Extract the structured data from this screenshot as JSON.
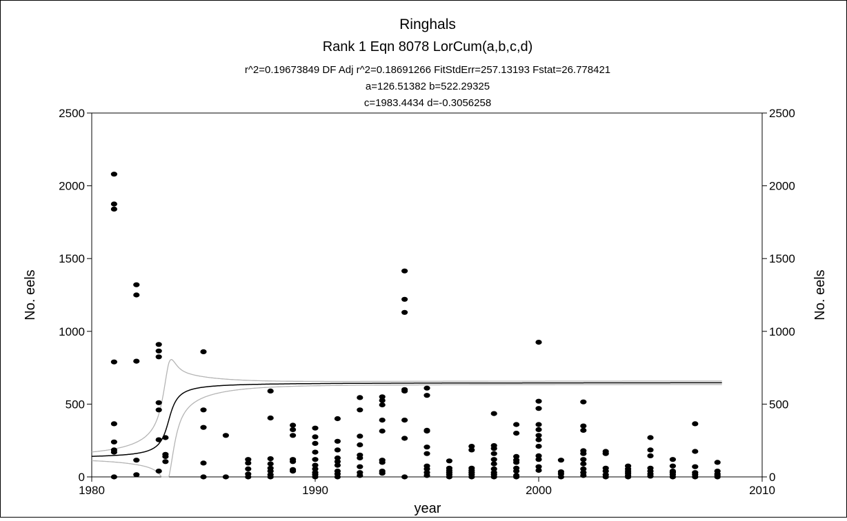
{
  "chart_data": {
    "type": "scatter",
    "title": "Ringhals",
    "subtitle": "Rank 1  Eqn 8078  LorCum(a,b,c,d)",
    "stats_line": "r^2=0.19673849  DF Adj r^2=0.18691266  FitStdErr=257.13193  Fstat=26.778421",
    "params_line1": "a=126.51382 b=522.29325",
    "params_line2": "c=1983.4434 d=-0.3056258",
    "xlabel": "year",
    "ylabel": "No. eels",
    "ylabel_right": "No. eels",
    "xlim": [
      1980,
      2010
    ],
    "ylim": [
      0,
      2500
    ],
    "xticks": [
      1980,
      1990,
      2000,
      2010
    ],
    "yticks": [
      0,
      500,
      1000,
      1500,
      2000,
      2500
    ],
    "grid": false,
    "fit": {
      "a": 126.51382,
      "b": 522.29325,
      "c": 1983.4434,
      "d": -0.3056258
    },
    "fit_color": "#000000",
    "band_color": "#b4b4b4",
    "point_color": "#000000",
    "points": [
      [
        1981,
        2080
      ],
      [
        1981,
        1875
      ],
      [
        1981,
        1840
      ],
      [
        1981,
        790
      ],
      [
        1981,
        365
      ],
      [
        1981,
        240
      ],
      [
        1981,
        185
      ],
      [
        1981,
        170
      ],
      [
        1981,
        0
      ],
      [
        1982,
        1320
      ],
      [
        1982,
        1250
      ],
      [
        1982,
        795
      ],
      [
        1982,
        115
      ],
      [
        1982,
        15
      ],
      [
        1983,
        910
      ],
      [
        1983,
        865
      ],
      [
        1983,
        825
      ],
      [
        1983,
        510
      ],
      [
        1983,
        460
      ],
      [
        1983,
        255
      ],
      [
        1983,
        40
      ],
      [
        1983.3,
        270
      ],
      [
        1983.3,
        155
      ],
      [
        1983.3,
        140
      ],
      [
        1983.3,
        105
      ],
      [
        1985,
        860
      ],
      [
        1985,
        460
      ],
      [
        1985,
        340
      ],
      [
        1985,
        95
      ],
      [
        1985,
        0
      ],
      [
        1986,
        285
      ],
      [
        1986,
        0
      ],
      [
        1987,
        120
      ],
      [
        1987,
        95
      ],
      [
        1987,
        55
      ],
      [
        1987,
        20
      ],
      [
        1987,
        0
      ],
      [
        1988,
        590
      ],
      [
        1988,
        405
      ],
      [
        1988,
        125
      ],
      [
        1988,
        90
      ],
      [
        1988,
        60
      ],
      [
        1988,
        40
      ],
      [
        1988,
        15
      ],
      [
        1988,
        0
      ],
      [
        1989,
        355
      ],
      [
        1989,
        325
      ],
      [
        1989,
        285
      ],
      [
        1989,
        120
      ],
      [
        1989,
        105
      ],
      [
        1989,
        50
      ],
      [
        1989,
        40
      ],
      [
        1990,
        335
      ],
      [
        1990,
        275
      ],
      [
        1990,
        230
      ],
      [
        1990,
        170
      ],
      [
        1990,
        120
      ],
      [
        1990,
        80
      ],
      [
        1990,
        55
      ],
      [
        1990,
        30
      ],
      [
        1990,
        15
      ],
      [
        1990,
        0
      ],
      [
        1991,
        400
      ],
      [
        1991,
        245
      ],
      [
        1991,
        185
      ],
      [
        1991,
        130
      ],
      [
        1991,
        105
      ],
      [
        1991,
        80
      ],
      [
        1991,
        40
      ],
      [
        1991,
        20
      ],
      [
        1991,
        0
      ],
      [
        1992,
        545
      ],
      [
        1992,
        460
      ],
      [
        1992,
        280
      ],
      [
        1992,
        220
      ],
      [
        1992,
        150
      ],
      [
        1992,
        130
      ],
      [
        1992,
        70
      ],
      [
        1992,
        30
      ],
      [
        1992,
        10
      ],
      [
        1993,
        550
      ],
      [
        1993,
        525
      ],
      [
        1993,
        495
      ],
      [
        1993,
        390
      ],
      [
        1993,
        315
      ],
      [
        1993,
        115
      ],
      [
        1993,
        100
      ],
      [
        1993,
        40
      ],
      [
        1993,
        25
      ],
      [
        1994,
        1415
      ],
      [
        1994,
        1220
      ],
      [
        1994,
        1130
      ],
      [
        1994,
        600
      ],
      [
        1994,
        590
      ],
      [
        1994,
        390
      ],
      [
        1994,
        265
      ],
      [
        1994,
        0
      ],
      [
        1995,
        610
      ],
      [
        1995,
        560
      ],
      [
        1995,
        320
      ],
      [
        1995,
        315
      ],
      [
        1995,
        205
      ],
      [
        1995,
        160
      ],
      [
        1995,
        75
      ],
      [
        1995,
        55
      ],
      [
        1995,
        30
      ],
      [
        1995,
        10
      ],
      [
        1996,
        110
      ],
      [
        1996,
        60
      ],
      [
        1996,
        45
      ],
      [
        1996,
        30
      ],
      [
        1996,
        15
      ],
      [
        1996,
        0
      ],
      [
        1997,
        210
      ],
      [
        1997,
        185
      ],
      [
        1997,
        60
      ],
      [
        1997,
        45
      ],
      [
        1997,
        30
      ],
      [
        1997,
        15
      ],
      [
        1997,
        0
      ],
      [
        1998,
        435
      ],
      [
        1998,
        215
      ],
      [
        1998,
        195
      ],
      [
        1998,
        160
      ],
      [
        1998,
        120
      ],
      [
        1998,
        90
      ],
      [
        1998,
        55
      ],
      [
        1998,
        30
      ],
      [
        1998,
        15
      ],
      [
        1998,
        0
      ],
      [
        1999,
        360
      ],
      [
        1999,
        300
      ],
      [
        1999,
        140
      ],
      [
        1999,
        115
      ],
      [
        1999,
        100
      ],
      [
        1999,
        60
      ],
      [
        1999,
        40
      ],
      [
        1999,
        10
      ],
      [
        1999,
        0
      ],
      [
        2000,
        925
      ],
      [
        2000,
        520
      ],
      [
        2000,
        470
      ],
      [
        2000,
        360
      ],
      [
        2000,
        325
      ],
      [
        2000,
        285
      ],
      [
        2000,
        255
      ],
      [
        2000,
        210
      ],
      [
        2000,
        145
      ],
      [
        2000,
        120
      ],
      [
        2000,
        70
      ],
      [
        2000,
        45
      ],
      [
        2001,
        115
      ],
      [
        2001,
        35
      ],
      [
        2001,
        20
      ],
      [
        2001,
        0
      ],
      [
        2002,
        515
      ],
      [
        2002,
        350
      ],
      [
        2002,
        320
      ],
      [
        2002,
        180
      ],
      [
        2002,
        160
      ],
      [
        2002,
        120
      ],
      [
        2002,
        90
      ],
      [
        2002,
        55
      ],
      [
        2002,
        30
      ],
      [
        2002,
        10
      ],
      [
        2003,
        175
      ],
      [
        2003,
        160
      ],
      [
        2003,
        60
      ],
      [
        2003,
        40
      ],
      [
        2003,
        15
      ],
      [
        2003,
        0
      ],
      [
        2004,
        75
      ],
      [
        2004,
        55
      ],
      [
        2004,
        40
      ],
      [
        2004,
        25
      ],
      [
        2004,
        10
      ],
      [
        2004,
        0
      ],
      [
        2005,
        270
      ],
      [
        2005,
        185
      ],
      [
        2005,
        145
      ],
      [
        2005,
        60
      ],
      [
        2005,
        40
      ],
      [
        2005,
        20
      ],
      [
        2005,
        5
      ],
      [
        2006,
        120
      ],
      [
        2006,
        75
      ],
      [
        2006,
        40
      ],
      [
        2006,
        30
      ],
      [
        2006,
        15
      ],
      [
        2006,
        0
      ],
      [
        2007,
        365
      ],
      [
        2007,
        175
      ],
      [
        2007,
        70
      ],
      [
        2007,
        30
      ],
      [
        2007,
        15
      ],
      [
        2007,
        0
      ],
      [
        2008,
        100
      ],
      [
        2008,
        40
      ],
      [
        2008,
        20
      ],
      [
        2008,
        10
      ],
      [
        2008,
        0
      ]
    ]
  }
}
